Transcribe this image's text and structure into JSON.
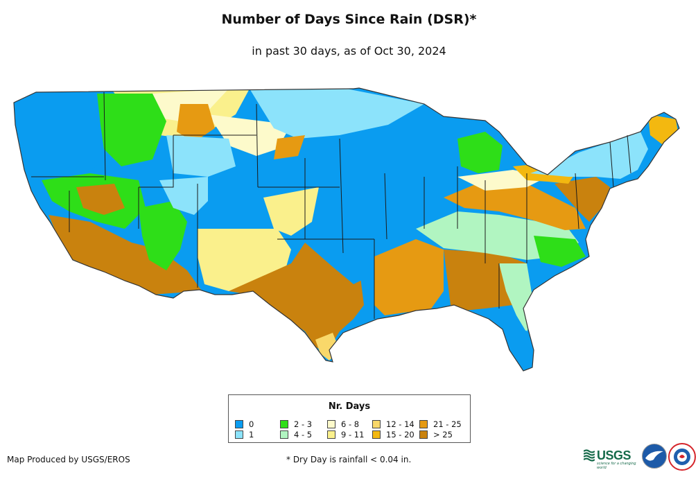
{
  "title": "Number of Days Since Rain (DSR)*",
  "subtitle": "in past 30 days, as of Oct 30, 2024",
  "legend": {
    "title": "Nr. Days",
    "items": [
      {
        "label": "0",
        "color": "#0a9cf0"
      },
      {
        "label": "1",
        "color": "#8ce3fb"
      },
      {
        "label": "2 - 3",
        "color": "#2ede18"
      },
      {
        "label": "4 - 5",
        "color": "#b1f5c1"
      },
      {
        "label": "6 - 8",
        "color": "#fdfacb"
      },
      {
        "label": "9 - 11",
        "color": "#faf08c"
      },
      {
        "label": "12 - 14",
        "color": "#f9d86a"
      },
      {
        "label": "15 - 20",
        "color": "#f3b810"
      },
      {
        "label": "21 - 25",
        "color": "#e69a12"
      },
      {
        "label": "> 25",
        "color": "#c9820e"
      }
    ]
  },
  "footer": {
    "producer": "Map Produced by USGS/EROS",
    "footnote": "* Dry Day is rainfall < 0.04 in."
  },
  "logos": {
    "usgs": "USGS",
    "usgs_tagline": "science for a changing world"
  },
  "colors": {
    "state_border": "#1a1a1a",
    "map_outline": "#333333"
  }
}
